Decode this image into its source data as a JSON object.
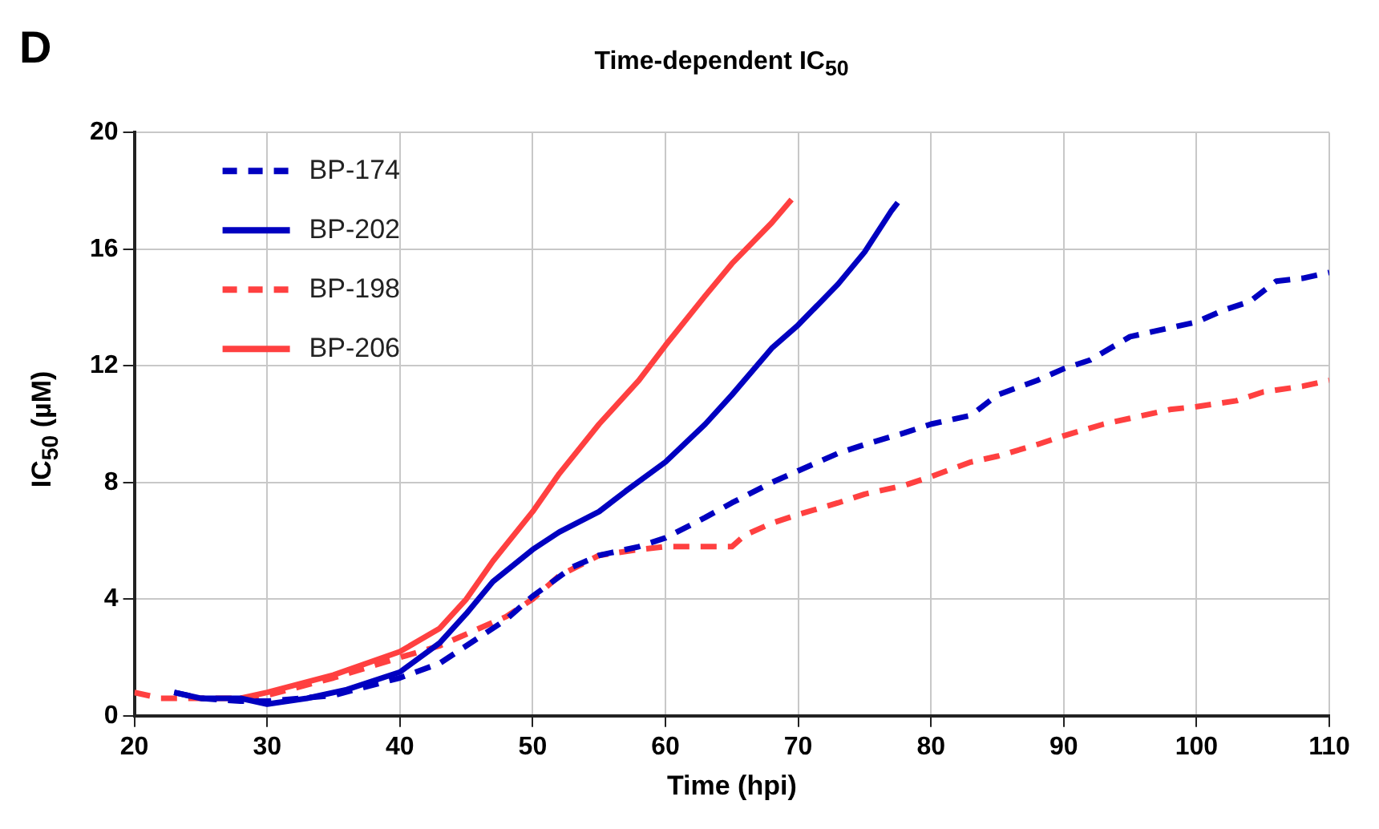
{
  "chart_data": {
    "type": "line",
    "title": "Time-dependent IC$_{50}$",
    "xlabel": "Time (hpi)",
    "ylabel": "IC$_{50}$ (µM)",
    "annotations": [
      "D"
    ],
    "xlim": [
      20,
      110
    ],
    "xticks": [
      20,
      30,
      40,
      50,
      60,
      70,
      80,
      90,
      100,
      110
    ],
    "ylim": [
      0,
      20
    ],
    "yticks": [
      0,
      4,
      8,
      12,
      16,
      20
    ],
    "grid": true,
    "legend": "top left",
    "marker": "none",
    "series": [
      {
        "name": "BP-174",
        "color": "#0000c0",
        "line_style": "dashed",
        "x": [
          23,
          25,
          28,
          30,
          35,
          40,
          43,
          45,
          48,
          50,
          53,
          55,
          58,
          60,
          63,
          65,
          68,
          70,
          73,
          75,
          78,
          80,
          83,
          85,
          88,
          90,
          92,
          95,
          98,
          100,
          102,
          104,
          106,
          108,
          110
        ],
        "values": [
          0.8,
          0.6,
          0.5,
          0.5,
          0.7,
          1.3,
          1.8,
          2.4,
          3.3,
          4.1,
          5.1,
          5.5,
          5.8,
          6.1,
          6.8,
          7.3,
          8,
          8.4,
          9,
          9.3,
          9.7,
          10,
          10.3,
          11,
          11.5,
          11.9,
          12.2,
          13,
          13.3,
          13.5,
          13.9,
          14.2,
          14.9,
          15,
          15.2
        ]
      },
      {
        "name": "BP-202",
        "color": "#0000c0",
        "line_style": "solid",
        "x": [
          23,
          25,
          28,
          30,
          33,
          36,
          40,
          43,
          45,
          47,
          50,
          52,
          55,
          57,
          60,
          63,
          65,
          68,
          70,
          73,
          75,
          77,
          77.5
        ],
        "values": [
          0.8,
          0.6,
          0.6,
          0.4,
          0.6,
          0.9,
          1.5,
          2.5,
          3.5,
          4.6,
          5.7,
          6.3,
          7,
          7.7,
          8.7,
          10,
          11,
          12.6,
          13.4,
          14.8,
          15.9,
          17.3,
          17.6
        ]
      },
      {
        "name": "BP-198",
        "color": "#ff4040",
        "line_style": "dashed",
        "x": [
          20,
          22,
          25,
          28,
          30,
          35,
          40,
          43,
          45,
          48,
          50,
          52,
          55,
          58,
          60,
          63,
          65,
          66,
          68,
          70,
          73,
          75,
          78,
          80,
          83,
          85,
          88,
          90,
          93,
          95,
          98,
          100,
          103,
          105,
          108,
          110
        ],
        "values": [
          0.8,
          0.6,
          0.6,
          0.6,
          0.7,
          1.3,
          2,
          2.4,
          2.8,
          3.4,
          4,
          4.8,
          5.5,
          5.7,
          5.8,
          5.8,
          5.8,
          6.2,
          6.6,
          6.9,
          7.3,
          7.6,
          7.9,
          8.2,
          8.7,
          8.9,
          9.3,
          9.6,
          10,
          10.2,
          10.5,
          10.6,
          10.8,
          11.1,
          11.3,
          11.5
        ]
      },
      {
        "name": "BP-206",
        "color": "#ff4040",
        "line_style": "solid",
        "x": [
          28,
          30,
          35,
          40,
          43,
          45,
          47,
          50,
          52,
          55,
          58,
          60,
          63,
          65,
          68,
          69.5
        ],
        "values": [
          0.6,
          0.8,
          1.4,
          2.2,
          3,
          4,
          5.3,
          7,
          8.3,
          10,
          11.5,
          12.7,
          14.4,
          15.5,
          16.9,
          17.7
        ]
      }
    ]
  }
}
